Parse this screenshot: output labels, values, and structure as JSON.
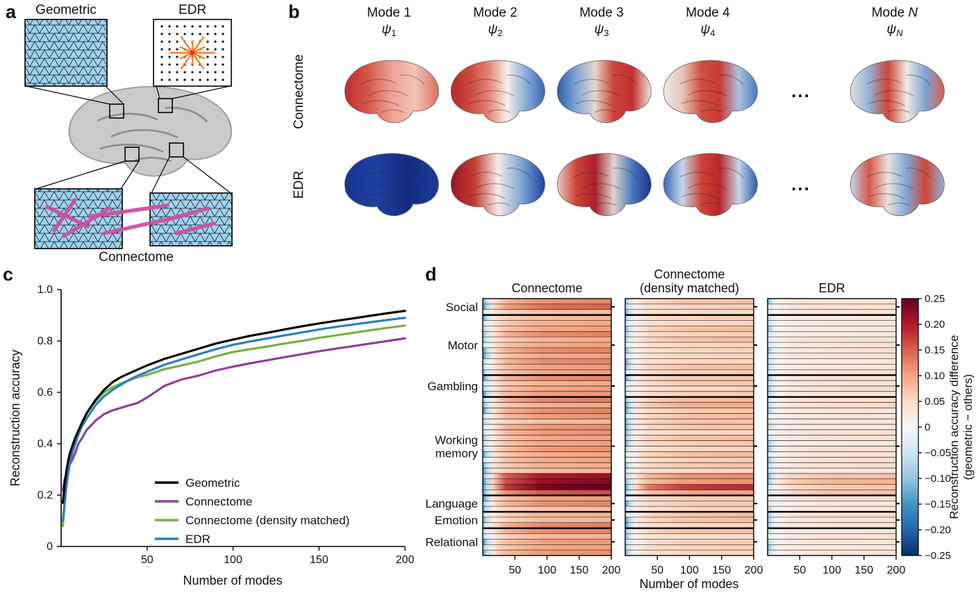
{
  "figure": {
    "panel_labels": {
      "a": "a",
      "b": "b",
      "c": "c",
      "d": "d"
    }
  },
  "panel_a": {
    "labels": {
      "geometric": "Geometric",
      "edr": "EDR",
      "connectome": "Connectome"
    },
    "colors": {
      "mesh_blue": "#9ed3f2",
      "mesh_edge": "#1a1a1a",
      "dot_black": "#111111",
      "edr_orange": "#f08232",
      "edr_center": "#e03c1e",
      "link_magenta": "#cf4fa6",
      "brain_gray": "#cacaca",
      "brain_sulci": "#8f8f8f"
    }
  },
  "panel_b": {
    "row_labels": [
      "Connectome",
      "EDR"
    ],
    "ellipsis": "...",
    "columns": [
      {
        "mode_label": "Mode",
        "mode_num": "1",
        "psi": "ψ",
        "sub": "1",
        "italic": false
      },
      {
        "mode_label": "Mode",
        "mode_num": "2",
        "psi": "ψ",
        "sub": "2",
        "italic": false
      },
      {
        "mode_label": "Mode",
        "mode_num": "3",
        "psi": "ψ",
        "sub": "3",
        "italic": false
      },
      {
        "mode_label": "Mode",
        "mode_num": "4",
        "psi": "ψ",
        "sub": "4",
        "italic": false
      },
      {
        "mode_label": "Mode",
        "mode_num": "N",
        "psi": "ψ",
        "sub": "N",
        "italic": true
      }
    ],
    "brains": {
      "connectome": [
        [
          "#bd2c2c",
          "#d5574a",
          "#eea195",
          "#f2c4b8",
          "#dd6f5c"
        ],
        [
          "#b92828",
          "#cc4a3c",
          "#e38374",
          "#f6efe9",
          "#88abd8",
          "#3b67b2"
        ],
        [
          "#2b5cab",
          "#7fa6d6",
          "#e8d5cd",
          "#cf4437",
          "#c23030",
          "#eae3df"
        ],
        [
          "#efe9e5",
          "#e7c5bb",
          "#d05040",
          "#c93a31",
          "#aac2e2",
          "#4a77bb"
        ],
        [
          "#e6e0dc",
          "#90b2da",
          "#cf4437",
          "#efe9e5",
          "#7da3d4",
          "#d6604d"
        ]
      ],
      "edr": [
        [
          "#17338f",
          "#1d41a3",
          "#142c80",
          "#1a3a9a"
        ],
        [
          "#971722",
          "#c43b31",
          "#f3ece7",
          "#7fa6d6",
          "#1d41a3"
        ],
        [
          "#ecc9bf",
          "#cf4437",
          "#ab1f2a",
          "#ddd5d0",
          "#4a77bb",
          "#17338f"
        ],
        [
          "#3b67b2",
          "#c6d5eb",
          "#cf4437",
          "#b92828",
          "#c6d5eb",
          "#2b5cab"
        ],
        [
          "#c6d5eb",
          "#d5574a",
          "#eae3df",
          "#7fa6d6",
          "#cf4437",
          "#90b2da"
        ]
      ]
    }
  },
  "chart_data": [
    {
      "panel": "c",
      "type": "line",
      "title": "",
      "xlabel": "Number of modes",
      "ylabel": "Reconstruction accuracy",
      "xlim": [
        0,
        200
      ],
      "ylim": [
        0,
        1.0
      ],
      "x_tick_values": [
        50,
        100,
        150,
        200
      ],
      "x_tick_labels": [
        "50",
        "100",
        "150",
        "200"
      ],
      "y_tick_values": [
        0,
        0.2,
        0.4,
        0.6,
        0.8,
        1.0
      ],
      "y_tick_labels": [
        "0",
        "0.2",
        "0.4",
        "0.6",
        "0.8",
        "1.0"
      ],
      "legend_position": "inside lower right",
      "x": [
        1,
        2,
        3,
        4,
        5,
        6,
        8,
        10,
        12,
        15,
        18,
        20,
        25,
        30,
        35,
        40,
        45,
        50,
        60,
        70,
        80,
        90,
        100,
        110,
        120,
        130,
        140,
        150,
        160,
        170,
        180,
        190,
        200
      ],
      "series": [
        {
          "name": "Geometric",
          "color": "#000000",
          "values": [
            0.17,
            0.24,
            0.29,
            0.33,
            0.36,
            0.38,
            0.42,
            0.45,
            0.48,
            0.52,
            0.55,
            0.57,
            0.61,
            0.64,
            0.66,
            0.675,
            0.69,
            0.705,
            0.73,
            0.75,
            0.77,
            0.79,
            0.805,
            0.82,
            0.832,
            0.845,
            0.857,
            0.868,
            0.878,
            0.888,
            0.898,
            0.908,
            0.917
          ]
        },
        {
          "name": "Connectome",
          "color": "#8f3f97",
          "values": [
            0.22,
            0.26,
            0.28,
            0.3,
            0.32,
            0.33,
            0.36,
            0.4,
            0.42,
            0.455,
            0.475,
            0.49,
            0.515,
            0.53,
            0.54,
            0.55,
            0.56,
            0.58,
            0.625,
            0.65,
            0.665,
            0.685,
            0.7,
            0.713,
            0.725,
            0.737,
            0.748,
            0.76,
            0.77,
            0.78,
            0.79,
            0.8,
            0.81
          ]
        },
        {
          "name": "Connectome (density matched)",
          "color": "#77b043",
          "values": [
            0.08,
            0.16,
            0.23,
            0.29,
            0.34,
            0.37,
            0.41,
            0.45,
            0.48,
            0.52,
            0.55,
            0.565,
            0.6,
            0.62,
            0.635,
            0.648,
            0.66,
            0.668,
            0.69,
            0.705,
            0.72,
            0.74,
            0.757,
            0.768,
            0.778,
            0.79,
            0.8,
            0.812,
            0.822,
            0.832,
            0.842,
            0.851,
            0.86
          ]
        },
        {
          "name": "EDR",
          "color": "#2a7fc1",
          "values": [
            0.1,
            0.17,
            0.23,
            0.28,
            0.32,
            0.35,
            0.395,
            0.435,
            0.465,
            0.5,
            0.53,
            0.55,
            0.585,
            0.61,
            0.63,
            0.65,
            0.666,
            0.68,
            0.707,
            0.728,
            0.748,
            0.768,
            0.785,
            0.798,
            0.81,
            0.822,
            0.833,
            0.845,
            0.855,
            0.864,
            0.873,
            0.882,
            0.89
          ]
        }
      ]
    },
    {
      "panel": "d",
      "type": "heatmap",
      "xlabel": "Number of modes",
      "x_tick_labels": [
        "50",
        "100",
        "150",
        "200"
      ],
      "row_groups": [
        {
          "label_lines": [
            "Social"
          ],
          "rows": 3
        },
        {
          "label_lines": [
            "Motor"
          ],
          "rows": 11
        },
        {
          "label_lines": [
            "Gambling"
          ],
          "rows": 4
        },
        {
          "label_lines": [
            "Working",
            "memory"
          ],
          "rows": 18
        },
        {
          "label_lines": [
            "Language"
          ],
          "rows": 3
        },
        {
          "label_lines": [
            "Emotion"
          ],
          "rows": 3
        },
        {
          "label_lines": [
            "Relational"
          ],
          "rows": 5
        }
      ],
      "panels": [
        {
          "title_lines": [
            "Connectome"
          ],
          "plateau": 0.095,
          "left_blue": -0.11
        },
        {
          "title_lines": [
            "Connectome",
            "(density matched)"
          ],
          "plateau": 0.06,
          "left_blue": -0.1
        },
        {
          "title_lines": [
            "EDR"
          ],
          "plateau": 0.032,
          "left_blue": -0.08
        }
      ],
      "row_boosts": {
        "0": 1.5,
        "1": 1.2,
        "18": 1.3,
        "19": 1.25,
        "32": 1.9,
        "33": 2.3,
        "34": 2.4,
        "35": 1.9
      },
      "colorbar": {
        "label_lines": [
          "Reconstruction accuracy difference",
          "(geometric − others)"
        ],
        "min": -0.25,
        "max": 0.25,
        "stops": [
          {
            "v": -0.25,
            "c": "#053061"
          },
          {
            "v": -0.2,
            "c": "#2166ac"
          },
          {
            "v": -0.15,
            "c": "#4393c3"
          },
          {
            "v": -0.1,
            "c": "#92c5de"
          },
          {
            "v": -0.05,
            "c": "#d1e5f0"
          },
          {
            "v": 0,
            "c": "#f7f7f7"
          },
          {
            "v": 0.05,
            "c": "#fddbc7"
          },
          {
            "v": 0.1,
            "c": "#f4a582"
          },
          {
            "v": 0.15,
            "c": "#d6604d"
          },
          {
            "v": 0.2,
            "c": "#b2182b"
          },
          {
            "v": 0.25,
            "c": "#67001f"
          }
        ],
        "ticks": [
          {
            "v": 0.25,
            "label": "0.25"
          },
          {
            "v": 0.2,
            "label": "0.20"
          },
          {
            "v": 0.15,
            "label": "0.15"
          },
          {
            "v": 0.1,
            "label": "0.10"
          },
          {
            "v": 0.05,
            "label": "0.05"
          },
          {
            "v": 0,
            "label": "0"
          },
          {
            "v": -0.05,
            "label": "−0.05"
          },
          {
            "v": -0.1,
            "label": "−0.10"
          },
          {
            "v": -0.15,
            "label": "−0.15"
          },
          {
            "v": -0.2,
            "label": "−0.20"
          },
          {
            "v": -0.25,
            "label": "−0.25"
          }
        ]
      }
    }
  ]
}
